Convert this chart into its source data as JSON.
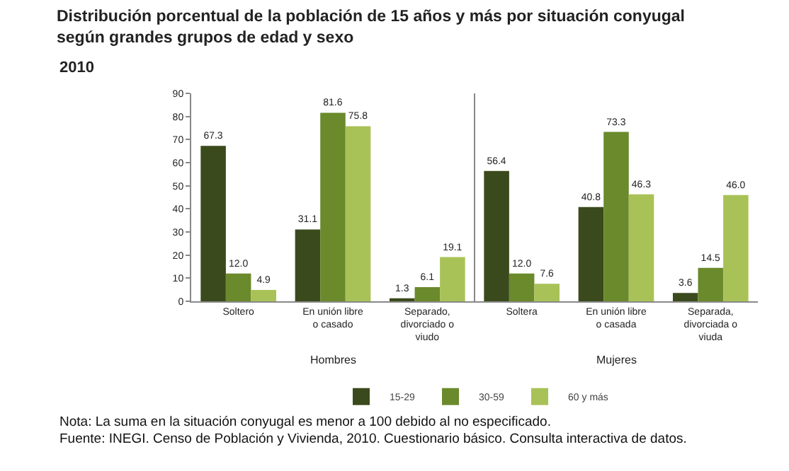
{
  "chart_data": {
    "type": "bar",
    "title": "Distribución porcentual de la población de 15 años y más por situación conyugal según grandes grupos de edad y sexo",
    "subtitle": "2010",
    "categories": [
      "Soltero",
      "En unión libre o casado",
      "Separado, divorciado o viudo",
      "Soltera",
      "En unión libre o casada",
      "Separada, divorciada o viuda"
    ],
    "series": [
      {
        "name": "15-29",
        "color": "#3b4a1c",
        "values": [
          67.3,
          31.1,
          1.3,
          56.4,
          40.8,
          3.6
        ]
      },
      {
        "name": "30-59",
        "color": "#6a8a2c",
        "values": [
          12.0,
          81.6,
          6.1,
          12.0,
          73.3,
          14.5
        ]
      },
      {
        "name": "60 y más",
        "color": "#a9c257",
        "values": [
          4.9,
          75.8,
          19.1,
          7.6,
          46.3,
          46.0
        ]
      }
    ],
    "value_labels": [
      [
        "67.3",
        "31.1",
        "1.3",
        "56.4",
        "40.8",
        "3.6"
      ],
      [
        "12.0",
        "81.6",
        "6.1",
        "12.0",
        "73.3",
        "14.5"
      ],
      [
        "4.9",
        "75.8",
        "19.1",
        "7.6",
        "46.3",
        "46.0"
      ]
    ],
    "ylim": [
      0,
      90
    ],
    "yticks": [
      0,
      10,
      20,
      30,
      40,
      50,
      60,
      70,
      80,
      90
    ],
    "grid": false,
    "legend": "bottom",
    "annotations": [
      "Hombres",
      "Mujeres",
      "Nota: La suma en la situación conyugal es menor a 100 debido al no especificado.",
      "Fuente: INEGI. Censo de Población y Vivienda, 2010. Cuestionario básico. Consulta interactiva de datos."
    ]
  }
}
